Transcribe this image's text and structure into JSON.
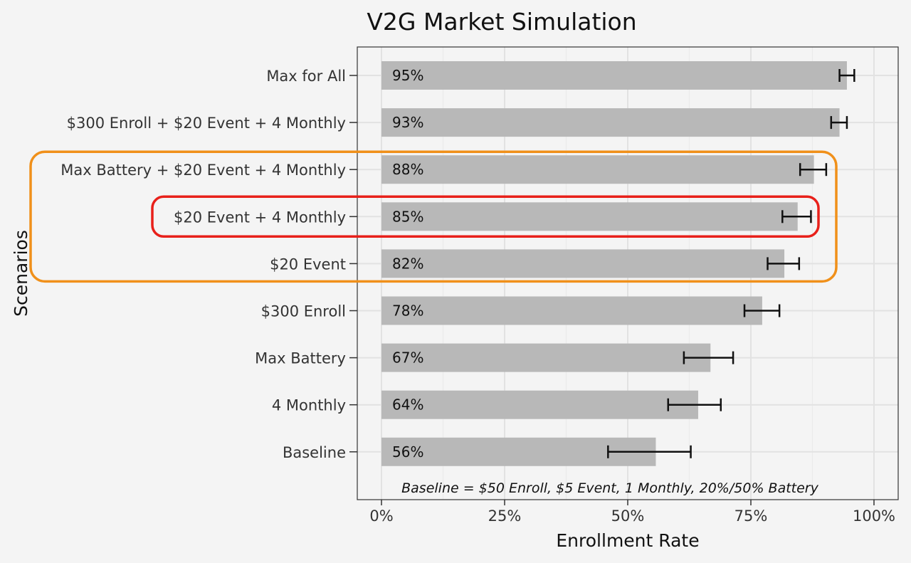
{
  "chart_data": {
    "type": "bar",
    "orientation": "horizontal",
    "title": "V2G Market Simulation",
    "xlabel": "Enrollment Rate",
    "ylabel": "Scenarios",
    "xlim": [
      0,
      1
    ],
    "x_ticks": [
      {
        "value": 0,
        "label": "0%"
      },
      {
        "value": 0.25,
        "label": "25%"
      },
      {
        "value": 0.5,
        "label": "50%"
      },
      {
        "value": 0.75,
        "label": "75%"
      },
      {
        "value": 1,
        "label": "100%"
      }
    ],
    "grid": true,
    "note": "Baseline = $50 Enroll, $5 Event, 1 Monthly, 20%/50% Battery",
    "bars": [
      {
        "category": "Max for All",
        "value": 0.945,
        "label": "95%",
        "err_low": 0.93,
        "err_high": 0.96
      },
      {
        "category": "$300 Enroll + $20 Event + 4 Monthly",
        "value": 0.93,
        "label": "93%",
        "err_low": 0.913,
        "err_high": 0.945
      },
      {
        "category": "Max Battery + $20 Event + 4 Monthly",
        "value": 0.878,
        "label": "88%",
        "err_low": 0.85,
        "err_high": 0.903
      },
      {
        "category": "$20 Event + 4 Monthly",
        "value": 0.845,
        "label": "85%",
        "err_low": 0.814,
        "err_high": 0.872
      },
      {
        "category": "$20 Event",
        "value": 0.818,
        "label": "82%",
        "err_low": 0.784,
        "err_high": 0.848
      },
      {
        "category": "$300 Enroll",
        "value": 0.773,
        "label": "78%",
        "err_low": 0.737,
        "err_high": 0.808
      },
      {
        "category": "Max Battery",
        "value": 0.668,
        "label": "67%",
        "err_low": 0.614,
        "err_high": 0.714
      },
      {
        "category": "4 Monthly",
        "value": 0.643,
        "label": "64%",
        "err_low": 0.582,
        "err_high": 0.689
      },
      {
        "category": "Baseline",
        "value": 0.557,
        "label": "56%",
        "err_low": 0.46,
        "err_high": 0.628
      }
    ],
    "highlights": [
      {
        "color": "#f0901a",
        "from_category": "Max Battery + $20 Event + 4 Monthly",
        "to_category": "$20 Event"
      },
      {
        "color": "#e8201a",
        "from_category": "$20 Event + 4 Monthly",
        "to_category": "$20 Event + 4 Monthly"
      }
    ],
    "colors": {
      "bar": "#b8b8b8",
      "panel": "#f4f4f4",
      "grid": "#e2e2e2",
      "error_bar": "#111111"
    }
  }
}
